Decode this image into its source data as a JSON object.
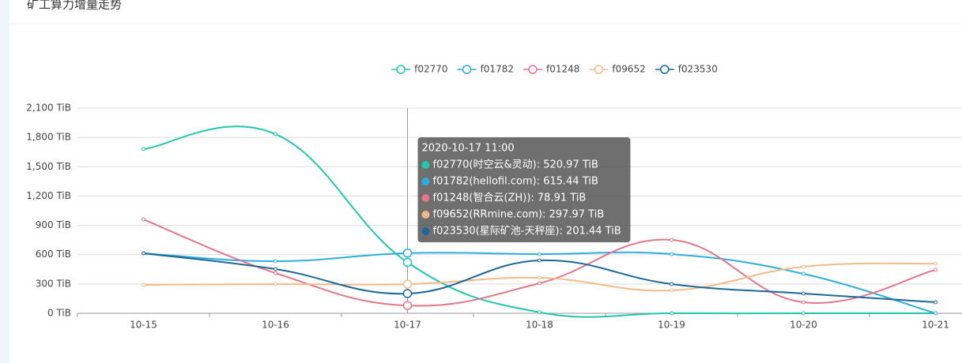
{
  "header": {
    "title": "矿工算力增量走势"
  },
  "chart_data": {
    "type": "line",
    "categories": [
      "10-15",
      "10-16",
      "10-17",
      "10-18",
      "10-19",
      "10-20",
      "10-21"
    ],
    "series": [
      {
        "name": "f02770",
        "color": "#22c7ab",
        "values": [
          1680,
          1834,
          520.97,
          10,
          0,
          0,
          0
        ]
      },
      {
        "name": "f01782",
        "color": "#2eaede",
        "values": [
          614,
          533,
          615.44,
          606,
          606,
          404,
          0
        ]
      },
      {
        "name": "f01248",
        "color": "#e2768c",
        "values": [
          961,
          412,
          78.91,
          307,
          751,
          113,
          444
        ]
      },
      {
        "name": "f09652",
        "color": "#f4bb89",
        "values": [
          291,
          299,
          297.97,
          363,
          234,
          477,
          509
        ]
      },
      {
        "name": "f023530",
        "color": "#1b6896",
        "values": [
          614,
          452,
          201.44,
          541,
          299,
          202,
          113
        ]
      }
    ],
    "ylim": [
      0,
      2100
    ],
    "yticks": [
      {
        "value": 0,
        "label": "0 TiB"
      },
      {
        "value": 300,
        "label": "300 TiB"
      },
      {
        "value": 600,
        "label": "600 TiB"
      },
      {
        "value": 900,
        "label": "900 TiB"
      },
      {
        "value": 1200,
        "label": "1,200 TiB"
      },
      {
        "value": 1500,
        "label": "1,500 TiB"
      },
      {
        "value": 1800,
        "label": "1,800 TiB"
      },
      {
        "value": 2100,
        "label": "2,100 TiB"
      }
    ],
    "grid": true,
    "legend": "top",
    "tooltip": {
      "category_index": 2,
      "title": "2020-10-17 11:00",
      "items": [
        "f02770(时空云&灵动): 520.97 TiB",
        "f01782(hellofil.com): 615.44 TiB",
        "f01248(智合云(ZH)): 78.91 TiB",
        "f09652(RRmine.com): 297.97 TiB",
        "f023530(星际矿池-天秤座): 201.44 TiB"
      ]
    }
  }
}
